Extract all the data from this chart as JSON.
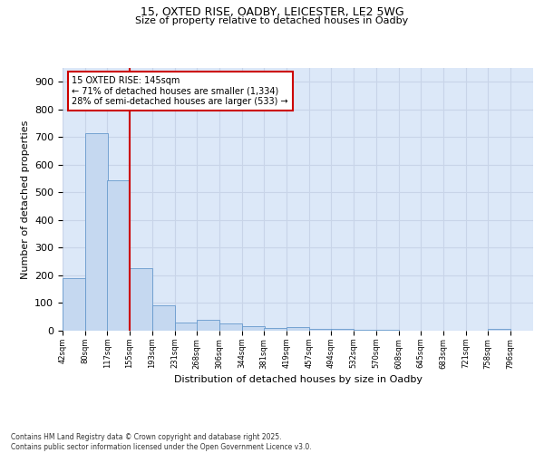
{
  "title1": "15, OXTED RISE, OADBY, LEICESTER, LE2 5WG",
  "title2": "Size of property relative to detached houses in Oadby",
  "xlabel": "Distribution of detached houses by size in Oadby",
  "ylabel": "Number of detached properties",
  "categories": [
    "42sqm",
    "80sqm",
    "117sqm",
    "155sqm",
    "193sqm",
    "231sqm",
    "268sqm",
    "306sqm",
    "344sqm",
    "381sqm",
    "419sqm",
    "457sqm",
    "494sqm",
    "532sqm",
    "570sqm",
    "608sqm",
    "645sqm",
    "683sqm",
    "721sqm",
    "758sqm",
    "796sqm"
  ],
  "values": [
    190,
    715,
    545,
    225,
    92,
    28,
    40,
    27,
    15,
    10,
    13,
    5,
    8,
    3,
    3,
    0,
    0,
    0,
    0,
    5,
    0
  ],
  "bar_color": "#c5d8f0",
  "bar_edge_color": "#6699cc",
  "grid_color": "#c8d4e8",
  "plot_bg_color": "#dce8f8",
  "fig_bg_color": "#ffffff",
  "vline_color": "#cc0000",
  "annotation_title": "15 OXTED RISE: 145sqm",
  "annotation_line1": "← 71% of detached houses are smaller (1,334)",
  "annotation_line2": "28% of semi-detached houses are larger (533) →",
  "annotation_box_edgecolor": "#cc0000",
  "ylim": [
    0,
    950
  ],
  "yticks": [
    0,
    100,
    200,
    300,
    400,
    500,
    600,
    700,
    800,
    900
  ],
  "vline_x": 155,
  "footnote1": "Contains HM Land Registry data © Crown copyright and database right 2025.",
  "footnote2": "Contains public sector information licensed under the Open Government Licence v3.0."
}
